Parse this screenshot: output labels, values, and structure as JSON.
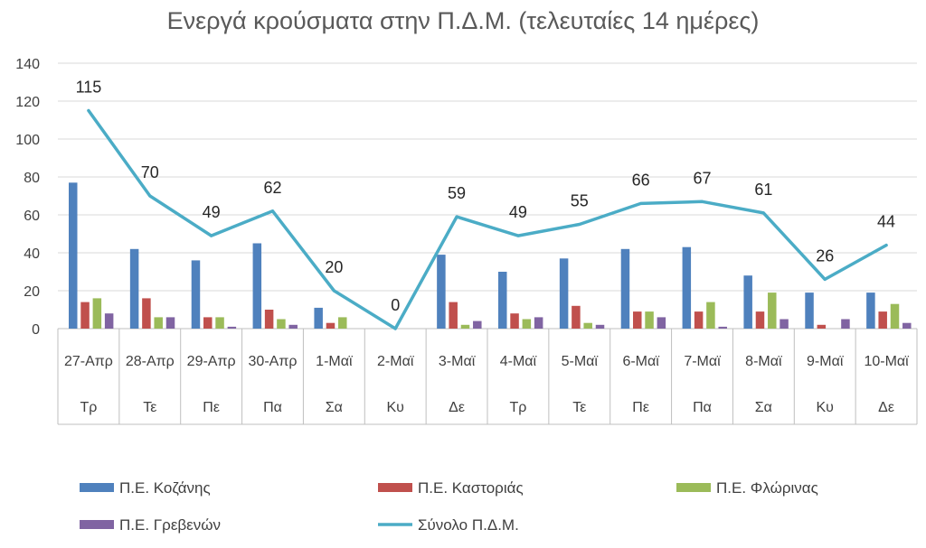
{
  "chart_data": {
    "type": "bar",
    "title": "Ενεργά κρούσματα στην Π.Δ.Μ. (τελευταίες 14 ημέρες)",
    "categories": [
      "27-Απρ",
      "28-Απρ",
      "29-Απρ",
      "30-Απρ",
      "1-Μαϊ",
      "2-Μαϊ",
      "3-Μαϊ",
      "4-Μαϊ",
      "5-Μαϊ",
      "6-Μαϊ",
      "7-Μαϊ",
      "8-Μαϊ",
      "9-Μαϊ",
      "10-Μαϊ"
    ],
    "days": [
      "Τρ",
      "Τε",
      "Πε",
      "Πα",
      "Σα",
      "Κυ",
      "Δε",
      "Τρ",
      "Τε",
      "Πε",
      "Πα",
      "Σα",
      "Κυ",
      "Δε"
    ],
    "ylim": [
      0,
      140
    ],
    "yticks": [
      0,
      20,
      40,
      60,
      80,
      100,
      120,
      140
    ],
    "grid": true,
    "legend_position": "bottom",
    "series": [
      {
        "name": "Π.Ε. Κοζάνης",
        "kind": "bar",
        "color": "#4f81bd",
        "values": [
          77,
          42,
          36,
          45,
          11,
          0,
          39,
          30,
          37,
          42,
          43,
          28,
          19,
          19
        ]
      },
      {
        "name": "Π.Ε. Καστοριάς",
        "kind": "bar",
        "color": "#c0504d",
        "values": [
          14,
          16,
          6,
          10,
          3,
          0,
          14,
          8,
          12,
          9,
          9,
          9,
          2,
          9
        ]
      },
      {
        "name": "Π.Ε. Φλώρινας",
        "kind": "bar",
        "color": "#9bbb59",
        "values": [
          16,
          6,
          6,
          5,
          6,
          0,
          2,
          5,
          3,
          9,
          14,
          19,
          0,
          13
        ]
      },
      {
        "name": "Π.Ε. Γρεβενών",
        "kind": "bar",
        "color": "#8064a2",
        "values": [
          8,
          6,
          1,
          2,
          0,
          0,
          4,
          6,
          2,
          6,
          1,
          5,
          5,
          3
        ]
      },
      {
        "name": "Σύνολο Π.Δ.Μ.",
        "kind": "line",
        "color": "#4bacc6",
        "values": [
          115,
          70,
          49,
          62,
          20,
          0,
          59,
          49,
          55,
          66,
          67,
          61,
          26,
          44
        ]
      }
    ]
  }
}
